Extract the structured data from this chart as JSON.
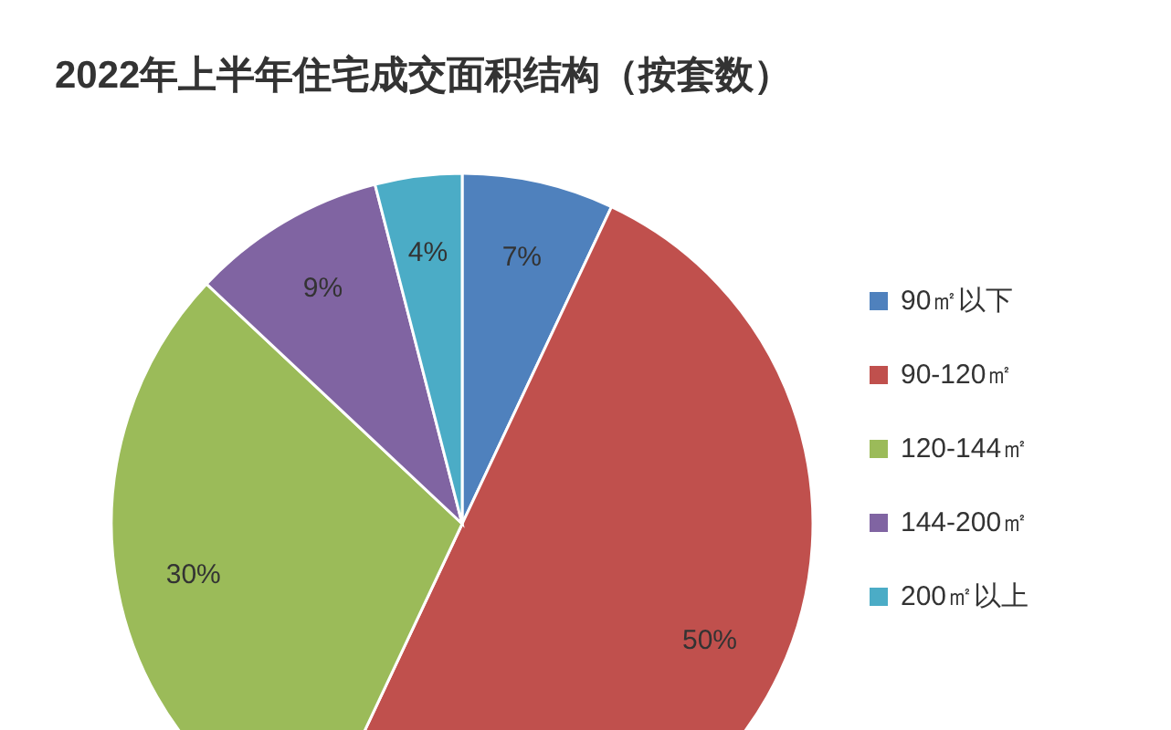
{
  "chart_data": {
    "type": "pie",
    "title": "2022年上半年住宅成交面积结构（按套数）",
    "categories": [
      "90㎡以下",
      "90-120㎡",
      "120-144㎡",
      "144-200㎡",
      "200㎡以上"
    ],
    "values": [
      7,
      50,
      30,
      9,
      4
    ],
    "colors": [
      "#4f81bd",
      "#c0504d",
      "#9bbb59",
      "#8064a2",
      "#4bacc6"
    ],
    "value_labels": [
      "7%",
      "50%",
      "30%",
      "9%",
      "4%"
    ],
    "legend": "right"
  }
}
